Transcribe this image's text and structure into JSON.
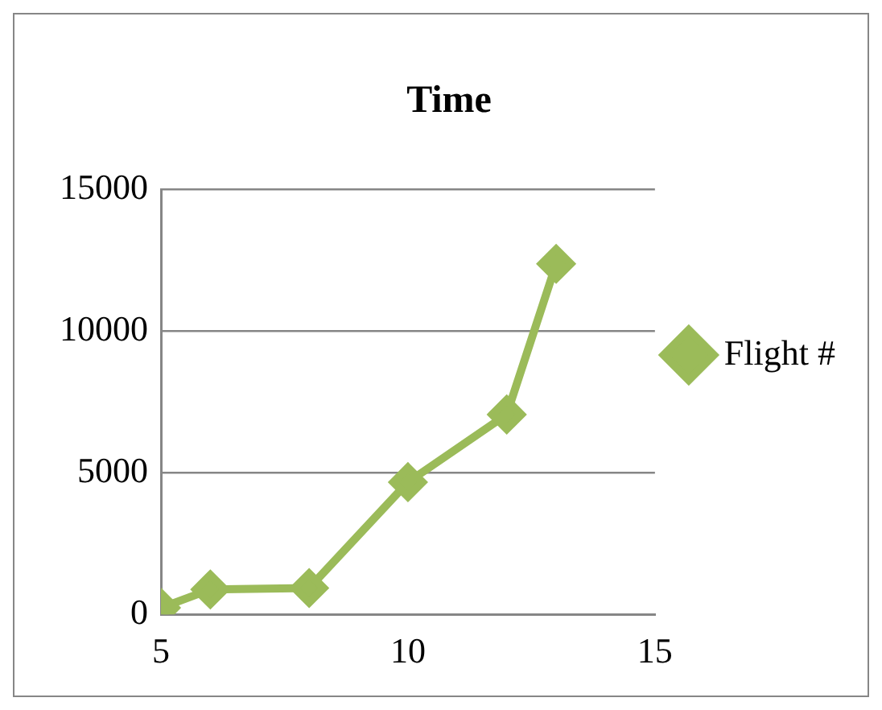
{
  "chart_data": {
    "type": "line",
    "title": "Time",
    "x": [
      5,
      6,
      8,
      10,
      12,
      13
    ],
    "series": [
      {
        "name": "Flight #",
        "color": "#9bbb59",
        "values": [
          230,
          880,
          930,
          4670,
          7060,
          12380
        ]
      }
    ],
    "xlim": [
      5,
      15
    ],
    "xticks": [
      5,
      10,
      15
    ],
    "ylim": [
      0,
      15000
    ],
    "yticks": [
      0,
      5000,
      10000,
      15000
    ],
    "grid": "y",
    "legend": "right",
    "marker": "diamond",
    "line_style": "solid"
  }
}
